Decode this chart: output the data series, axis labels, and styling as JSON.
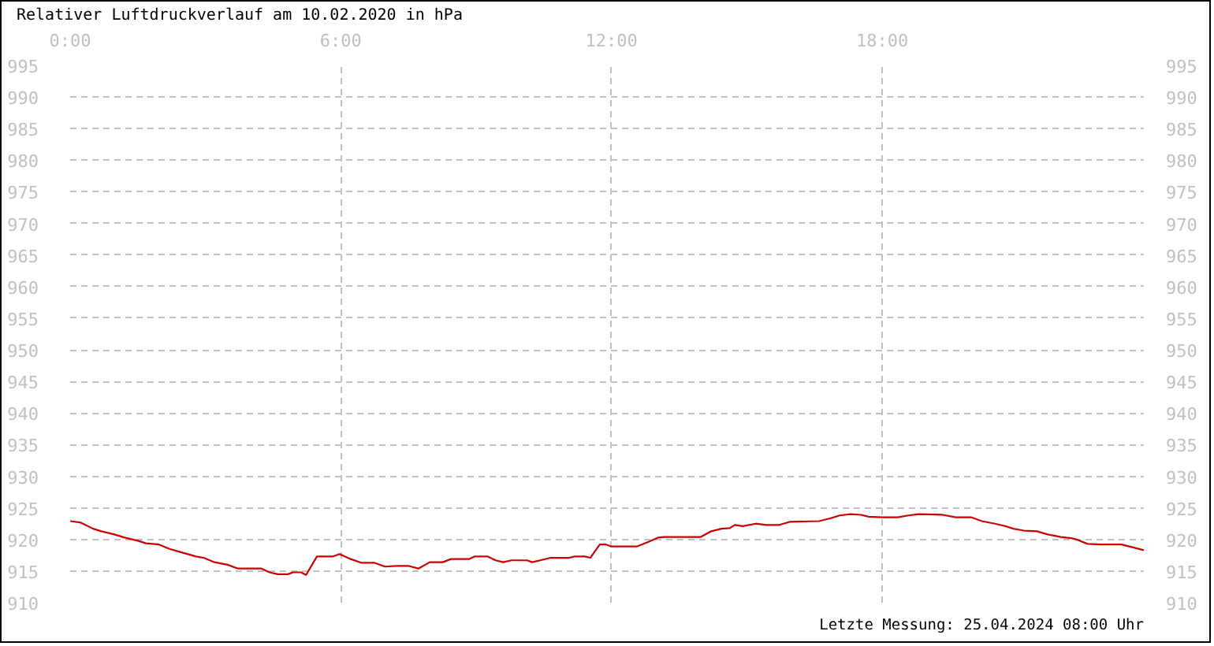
{
  "chart_data": {
    "type": "line",
    "title": "Relativer Luftdruckverlauf am 10.02.2020 in hPa",
    "annotations": [
      "Letzte Messung: 25.04.2024 08:00 Uhr"
    ],
    "x": [
      0,
      0.22,
      0.51,
      0.69,
      0.98,
      1.21,
      1.5,
      1.68,
      1.97,
      2.2,
      2.5,
      2.79,
      2.96,
      3.2,
      3.49,
      3.72,
      4.24,
      4.42,
      4.6,
      4.83,
      4.94,
      5.12,
      5.23,
      5.47,
      5.82,
      5.97,
      6.22,
      6.46,
      6.75,
      6.98,
      7.22,
      7.51,
      7.72,
      7.97,
      8.26,
      8.44,
      8.84,
      8.96,
      9.26,
      9.43,
      9.6,
      9.78,
      10.13,
      10.24,
      10.42,
      10.65,
      11.06,
      11.18,
      11.41,
      11.53,
      11.74,
      11.88,
      11.99,
      12.57,
      12.81,
      13.04,
      13.16,
      13.98,
      14.21,
      14.44,
      14.62,
      14.73,
      14.91,
      15.2,
      15.43,
      15.72,
      15.96,
      16.6,
      16.83,
      17.06,
      17.3,
      17.53,
      17.7,
      17.99,
      18.35,
      18.58,
      18.81,
      19.34,
      19.63,
      19.98,
      20.21,
      20.5,
      20.73,
      20.91,
      21.14,
      21.43,
      21.67,
      21.96,
      22.19,
      22.31,
      22.55,
      22.84,
      23.3,
      23.53,
      23.8
    ],
    "series": [
      {
        "color": "#cc0000",
        "values": [
          922.9,
          922.7,
          921.7,
          921.3,
          920.8,
          920.3,
          919.8,
          919.4,
          919.2,
          918.5,
          917.9,
          917.3,
          917.1,
          916.4,
          916.0,
          915.4,
          915.4,
          914.8,
          914.5,
          914.5,
          914.8,
          914.8,
          914.4,
          917.3,
          917.3,
          917.7,
          916.9,
          916.3,
          916.3,
          915.7,
          915.8,
          915.8,
          915.4,
          916.4,
          916.4,
          916.9,
          916.9,
          917.3,
          917.3,
          916.7,
          916.4,
          916.7,
          916.7,
          916.4,
          916.7,
          917.1,
          917.1,
          917.3,
          917.3,
          917.1,
          919.2,
          919.2,
          918.9,
          918.9,
          919.6,
          920.3,
          920.4,
          920.4,
          921.3,
          921.7,
          921.8,
          922.3,
          922.1,
          922.5,
          922.3,
          922.3,
          922.8,
          922.9,
          923.3,
          923.8,
          924.0,
          923.9,
          923.6,
          923.5,
          923.5,
          923.8,
          924.0,
          923.9,
          923.5,
          923.5,
          922.9,
          922.5,
          922.1,
          921.7,
          921.4,
          921.3,
          920.8,
          920.4,
          920.2,
          920.0,
          919.3,
          919.2,
          919.2,
          918.8,
          918.3
        ]
      }
    ],
    "xlim": [
      0,
      23.8
    ],
    "xticks": [
      {
        "value": 0,
        "label": "0:00"
      },
      {
        "value": 6,
        "label": "6:00"
      },
      {
        "value": 12,
        "label": "12:00"
      },
      {
        "value": 18,
        "label": "18:00"
      }
    ],
    "ylim": [
      910,
      995
    ],
    "yticks": [
      910,
      915,
      920,
      925,
      930,
      935,
      940,
      945,
      950,
      955,
      960,
      965,
      970,
      975,
      980,
      985,
      990,
      995
    ],
    "y2lim": [
      910,
      995
    ],
    "y2ticks": [
      910,
      915,
      920,
      925,
      930,
      935,
      940,
      945,
      950,
      955,
      960,
      965,
      970,
      975,
      980,
      985,
      990,
      995
    ],
    "grid": true
  }
}
